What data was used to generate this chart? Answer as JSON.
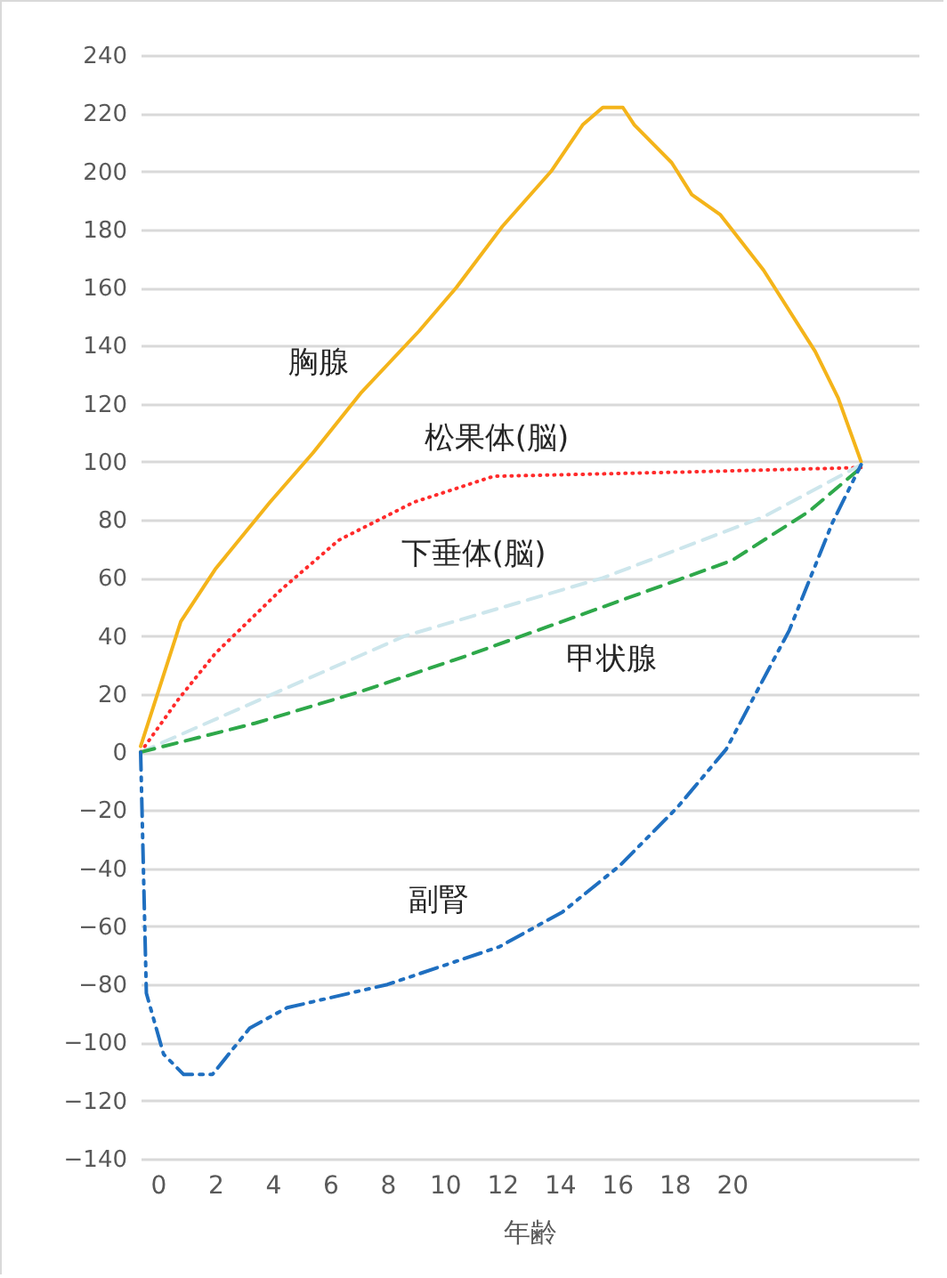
{
  "chart_data": {
    "type": "line",
    "xlabel": "年齢",
    "xlim": [
      -0.6,
      26.5
    ],
    "xticks": [
      0,
      2,
      4,
      6,
      8,
      10,
      12,
      14,
      16,
      18,
      20
    ],
    "ylim": [
      -140,
      240
    ],
    "yticks": [
      -140,
      -120,
      -100,
      -80,
      -60,
      -40,
      -20,
      0,
      20,
      40,
      60,
      80,
      100,
      120,
      140,
      160,
      180,
      200,
      220,
      240
    ],
    "grid": "y",
    "series": [
      {
        "name": "胸腺",
        "color": "#f4b41a",
        "line_style": "solid",
        "x": [
          -0.6,
          0.8,
          2.0,
          3.9,
          5.4,
          7.1,
          9.1,
          10.4,
          12.0,
          13.7,
          14.8,
          15.5,
          16.2,
          16.6,
          17.9,
          18.6,
          19.6,
          21.1,
          22.9,
          23.7,
          24.5
        ],
        "values": [
          2,
          45,
          63,
          86,
          103,
          124,
          145,
          160,
          181,
          200,
          216,
          222,
          222,
          216,
          203,
          192,
          185,
          166,
          138,
          122,
          100
        ]
      },
      {
        "name": "松果体(脳)",
        "color": "#ff2b2b",
        "line_style": "dotted",
        "x": [
          -0.6,
          0.7,
          2.0,
          4.3,
          6.3,
          8.9,
          11.7,
          18.9,
          24.5
        ],
        "values": [
          0,
          18,
          34,
          56,
          73,
          86,
          95,
          96.6,
          98
        ]
      },
      {
        "name": "下垂体(脳)",
        "color": "#cde6ec",
        "line_style": "dashed",
        "x": [
          -0.6,
          8.6,
          15.5,
          21.1,
          24.5
        ],
        "values": [
          0,
          40,
          60,
          81,
          99
        ]
      },
      {
        "name": "甲状腺",
        "color": "#2ea84a",
        "line_style": "dashed",
        "x": [
          -0.6,
          3.4,
          7.1,
          10.7,
          15.5,
          20,
          22.7,
          24.5
        ],
        "values": [
          0,
          10,
          21,
          33,
          50,
          66,
          83,
          98
        ]
      },
      {
        "name": "副腎",
        "color": "#1f6fc0",
        "line_style": "dashdot",
        "x": [
          -0.6,
          -0.4,
          0.2,
          0.9,
          1.9,
          3.2,
          4.5,
          8.0,
          11.9,
          14.1,
          16.1,
          18.1,
          19.8,
          22.0,
          23.5,
          24.5
        ],
        "values": [
          0,
          -83,
          -104,
          -111,
          -111,
          -95,
          -88,
          -80,
          -67,
          -55,
          -39,
          -19,
          1,
          42,
          79,
          99
        ]
      }
    ]
  }
}
